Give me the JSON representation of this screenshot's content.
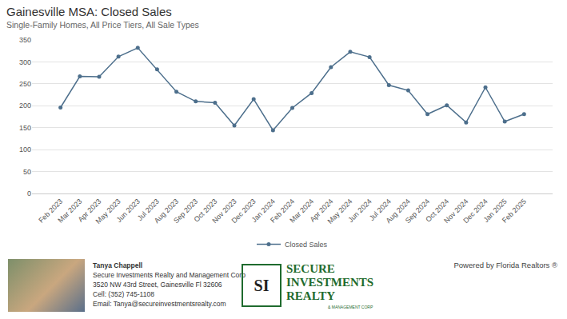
{
  "chart_data": {
    "type": "line",
    "title": "Gainesville MSA: Closed Sales",
    "subtitle": "Single-Family Homes, All Price Tiers, All Sale Types",
    "categories": [
      "Feb 2023",
      "Mar 2023",
      "Apr 2023",
      "May 2023",
      "Jun 2023",
      "Jul 2023",
      "Aug 2023",
      "Sep 2023",
      "Oct 2023",
      "Nov 2023",
      "Dec 2023",
      "Jan 2024",
      "Feb 2024",
      "Mar 2024",
      "Apr 2024",
      "May 2024",
      "Jun 2024",
      "Jul 2024",
      "Aug 2024",
      "Sep 2024",
      "Oct 2024",
      "Nov 2024",
      "Dec 2024",
      "Jan 2025",
      "Feb 2025"
    ],
    "series": [
      {
        "name": "Closed Sales",
        "color": "#4d6f8c",
        "marker": "circle",
        "line_style": "solid",
        "values": [
          196,
          267,
          266,
          312,
          332,
          283,
          232,
          210,
          207,
          155,
          215,
          144,
          195,
          229,
          288,
          323,
          311,
          247,
          235,
          181,
          201,
          162,
          242,
          164,
          181
        ]
      }
    ],
    "ylim": [
      0,
      350
    ],
    "yticks": [
      0,
      50,
      100,
      150,
      200,
      250,
      300,
      350
    ],
    "grid": true,
    "legend": "bottom"
  },
  "footer": {
    "agent": [
      "Tanya Chappell",
      "Secure Investments Realty and Management Corp",
      "3520 NW 43rd Street, Gainesville Fl 32606",
      "Cell: (352) 745-1108",
      "Email: Tanya@secureinvestmentsrealty.com"
    ],
    "logo_mark": "SI",
    "logo_lines": [
      "SECURE",
      "INVESTMENTS",
      "REALTY"
    ],
    "logo_tagline": "& MANAGEMENT CORP",
    "powered_by": "Powered by Florida Realtors ®"
  }
}
